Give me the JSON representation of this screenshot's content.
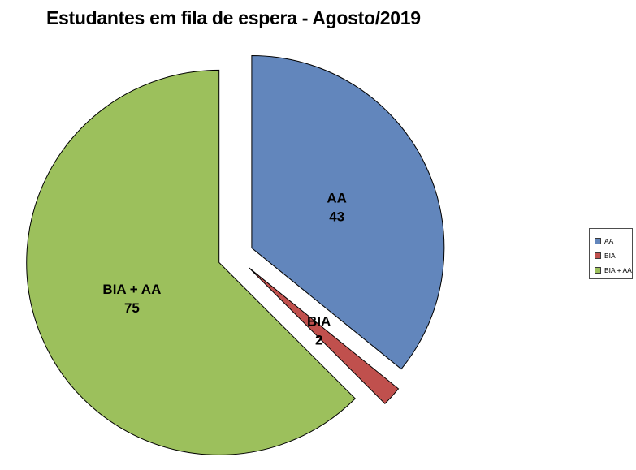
{
  "chart_data": {
    "type": "pie",
    "title": "Estudantes em fila de espera - Agosto/2019",
    "total": 120,
    "start_angle_deg": 0,
    "direction": "clockwise",
    "exploded": true,
    "legend_position": "right",
    "slices": [
      {
        "label": "AA",
        "value": 43,
        "color": "#6286BC"
      },
      {
        "label": "BIA",
        "value": 2,
        "color": "#C0504D"
      },
      {
        "label": "BIA + AA",
        "value": 75,
        "color": "#9CC05C"
      }
    ]
  }
}
